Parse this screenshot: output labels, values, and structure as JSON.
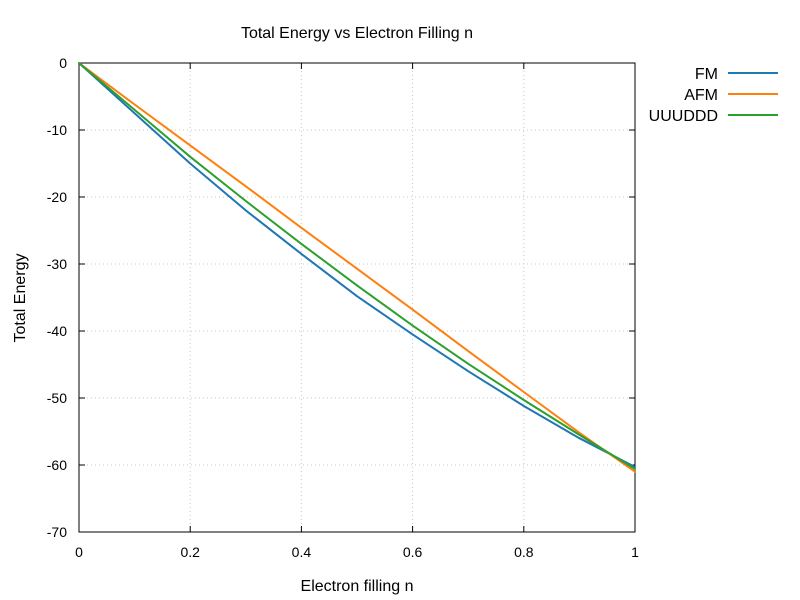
{
  "chart_data": {
    "type": "line",
    "title": "Total Energy vs Electron Filling n",
    "xlabel": "Electron filling n",
    "ylabel": "Total Energy",
    "xlim": [
      0,
      1
    ],
    "ylim": [
      -70,
      0
    ],
    "xticks": [
      0,
      0.2,
      0.4,
      0.6,
      0.8,
      1
    ],
    "xtick_labels": [
      "0",
      "0.2",
      "0.4",
      "0.6",
      "0.8",
      "1"
    ],
    "yticks": [
      0,
      -10,
      -20,
      -30,
      -40,
      -50,
      -60,
      -70
    ],
    "ytick_labels": [
      "0",
      "-10",
      "-20",
      "-30",
      "-40",
      "-50",
      "-60",
      "-70"
    ],
    "grid": true,
    "legend_position": "outside-top-right",
    "series": [
      {
        "name": "FM",
        "color": "#1f77b4",
        "x": [
          0,
          0.1,
          0.2,
          0.3,
          0.4,
          0.5,
          0.6,
          0.7,
          0.8,
          0.9,
          1.0
        ],
        "y": [
          0,
          -7.5,
          -15,
          -22,
          -28.5,
          -34.8,
          -40.5,
          -46,
          -51.2,
          -56,
          -60.3
        ]
      },
      {
        "name": "AFM",
        "color": "#ff7f0e",
        "x": [
          0,
          0.1,
          0.2,
          0.3,
          0.4,
          0.5,
          0.6,
          0.7,
          0.8,
          0.9,
          1.0
        ],
        "y": [
          0,
          -6.2,
          -12.3,
          -18.4,
          -24.6,
          -30.7,
          -36.8,
          -43,
          -49.1,
          -55.2,
          -61
        ]
      },
      {
        "name": "UUUDDD",
        "color": "#2ca02c",
        "x": [
          0,
          0.1,
          0.2,
          0.3,
          0.4,
          0.5,
          0.6,
          0.7,
          0.8,
          0.9,
          1.0
        ],
        "y": [
          0,
          -7,
          -14,
          -20.6,
          -27,
          -33.2,
          -39.2,
          -44.9,
          -50.3,
          -55.5,
          -60.6
        ]
      }
    ]
  }
}
